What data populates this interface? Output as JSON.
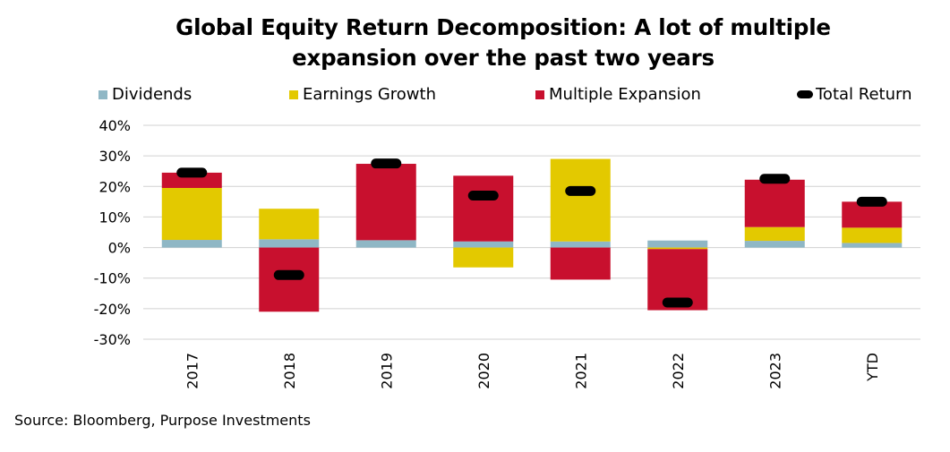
{
  "title_lines": [
    "Global Equity Return Decomposition: A lot of multiple",
    "expansion over the past two years"
  ],
  "source": "Source: Bloomberg, Purpose Investments",
  "colors": {
    "dividends": "#8fb7c5",
    "earnings": "#e3c900",
    "multiple": "#c8102e",
    "total": "#000000",
    "grid": "#d0d0d0"
  },
  "chart_data": {
    "type": "bar",
    "stacked": true,
    "categories": [
      "2017",
      "2018",
      "2019",
      "2020",
      "2021",
      "2022",
      "2023",
      "YTD"
    ],
    "series": [
      {
        "name": "Dividends",
        "values": [
          2.5,
          2.7,
          2.4,
          2.0,
          2.0,
          2.3,
          2.2,
          1.5
        ]
      },
      {
        "name": "Earnings Growth",
        "values": [
          17,
          10,
          0,
          -6.5,
          27,
          -0.5,
          4.5,
          5
        ]
      },
      {
        "name": "Multiple Expansion",
        "values": [
          5,
          -21,
          25,
          21.5,
          -10.5,
          -20,
          15.5,
          8.5
        ]
      }
    ],
    "total_return": {
      "name": "Total Return",
      "values": [
        24.5,
        -9,
        27.5,
        17,
        18.5,
        -18,
        22.5,
        15
      ]
    },
    "ylim": [
      -30,
      40
    ],
    "yticks": [
      -30,
      -20,
      -10,
      0,
      10,
      20,
      30,
      40
    ],
    "ytick_format": "percent",
    "grid": true,
    "legend_position": "top"
  }
}
